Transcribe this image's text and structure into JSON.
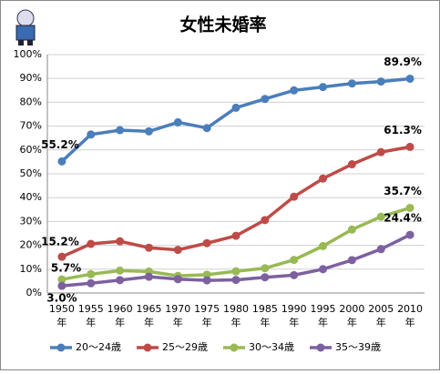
{
  "chart_data": {
    "type": "line",
    "title": "女性未婚率",
    "categories": [
      "1950年",
      "1955年",
      "1960年",
      "1965年",
      "1970年",
      "1975年",
      "1980年",
      "1985年",
      "1990年",
      "1995年",
      "2000年",
      "2005年",
      "2010年"
    ],
    "series": [
      {
        "name": "20～24歳",
        "color": "#4a7ebb",
        "values": [
          55.2,
          66.5,
          68.3,
          67.8,
          71.6,
          69.2,
          77.7,
          81.4,
          85.0,
          86.4,
          87.9,
          88.7,
          89.9
        ],
        "value_labels": [
          "55.2%",
          null,
          null,
          null,
          null,
          null,
          null,
          null,
          null,
          null,
          null,
          null,
          "89.9%"
        ]
      },
      {
        "name": "25～29歳",
        "color": "#be4b48",
        "values": [
          15.2,
          20.6,
          21.7,
          19.0,
          18.1,
          20.9,
          24.0,
          30.6,
          40.4,
          48.0,
          54.0,
          59.1,
          61.3
        ],
        "value_labels": [
          "15.2%",
          null,
          null,
          null,
          null,
          null,
          null,
          null,
          null,
          null,
          null,
          null,
          "61.3%"
        ]
      },
      {
        "name": "30～34歳",
        "color": "#98b954",
        "values": [
          5.7,
          7.9,
          9.4,
          9.0,
          7.2,
          7.7,
          9.1,
          10.4,
          13.9,
          19.7,
          26.6,
          32.0,
          35.7
        ],
        "value_labels": [
          "5.7%",
          null,
          null,
          null,
          null,
          null,
          null,
          null,
          null,
          null,
          null,
          null,
          "35.7%"
        ]
      },
      {
        "name": "35～39歳",
        "color": "#7d60a0",
        "values": [
          3.0,
          4.1,
          5.4,
          6.8,
          5.8,
          5.3,
          5.5,
          6.6,
          7.5,
          10.0,
          13.8,
          18.4,
          24.4
        ],
        "value_labels": [
          "3.0%",
          null,
          null,
          null,
          null,
          null,
          null,
          null,
          null,
          null,
          null,
          null,
          "24.4%"
        ]
      }
    ],
    "ylim": [
      0,
      100
    ],
    "yticks": [
      {
        "value": 0,
        "label": "0%"
      },
      {
        "value": 10,
        "label": "10%"
      },
      {
        "value": 20,
        "label": "20%"
      },
      {
        "value": 30,
        "label": "30%"
      },
      {
        "value": 40,
        "label": "40%"
      },
      {
        "value": 50,
        "label": "50%"
      },
      {
        "value": 60,
        "label": "60%"
      },
      {
        "value": 70,
        "label": "70%"
      },
      {
        "value": 80,
        "label": "80%"
      },
      {
        "value": 90,
        "label": "90%"
      },
      {
        "value": 100,
        "label": "100%"
      }
    ],
    "grid": true,
    "legend": "bottom"
  }
}
